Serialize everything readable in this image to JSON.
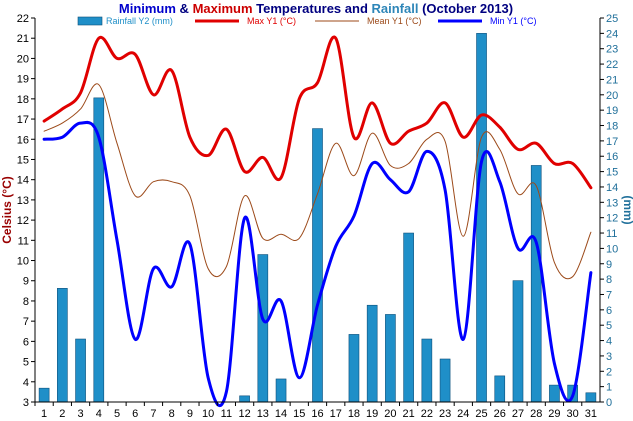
{
  "chart_data": {
    "type": "bar+line",
    "title_parts": [
      {
        "text": "Minimum",
        "color": "#0000cc"
      },
      {
        "text": " & ",
        "color": "#000080"
      },
      {
        "text": "Maximum",
        "color": "#cc0000"
      },
      {
        "text": " Temperatures and ",
        "color": "#000080"
      },
      {
        "text": "Rainfall",
        "color": "#2e86b8"
      },
      {
        "text": " (October 2013)",
        "color": "#000080"
      }
    ],
    "ylabel_left": "Celsius (°C)",
    "ylabel_right": "(mm)",
    "x": [
      1,
      2,
      3,
      4,
      5,
      6,
      7,
      8,
      9,
      10,
      11,
      12,
      13,
      14,
      15,
      16,
      17,
      18,
      19,
      20,
      21,
      22,
      23,
      24,
      25,
      26,
      27,
      28,
      29,
      30,
      31
    ],
    "y1_ticks": [
      3,
      4,
      5,
      6,
      7,
      8,
      9,
      10,
      11,
      12,
      13,
      14,
      15,
      16,
      17,
      18,
      19,
      20,
      21,
      22
    ],
    "y1_range": [
      3,
      22
    ],
    "y2_ticks": [
      0,
      1,
      2,
      3,
      4,
      5,
      6,
      7,
      8,
      9,
      10,
      11,
      12,
      13,
      14,
      15,
      16,
      17,
      18,
      19,
      20,
      21,
      22,
      23,
      24,
      25
    ],
    "y2_range": [
      0,
      25
    ],
    "grid": false,
    "legend_placement": "top",
    "series": [
      {
        "name": "Rainfall Y2 (mm)",
        "kind": "bar",
        "axis": "y2",
        "color": "#1f8fc8",
        "values": [
          0.9,
          7.4,
          4.1,
          19.8,
          0,
          0,
          0,
          0,
          0,
          0,
          0,
          0.4,
          9.6,
          1.5,
          0,
          17.8,
          0,
          4.4,
          6.3,
          5.7,
          11,
          4.1,
          2.8,
          0,
          24,
          1.7,
          7.9,
          15.4,
          1.1,
          1.1,
          0.6
        ]
      },
      {
        "name": "Max Y1 (°C)",
        "kind": "line",
        "axis": "y1",
        "color": "#e00000",
        "width": 3,
        "values": [
          16.9,
          17.5,
          18.3,
          21.0,
          20.0,
          20.2,
          18.2,
          19.4,
          16.1,
          15.2,
          16.5,
          14.4,
          15.1,
          14.1,
          18.0,
          18.8,
          21.0,
          16.1,
          17.8,
          15.8,
          16.4,
          16.8,
          17.8,
          16.1,
          17.2,
          16.6,
          15.5,
          15.8,
          14.8,
          14.8,
          13.6
        ]
      },
      {
        "name": "Mean Y1 (°C)",
        "kind": "line",
        "axis": "y1",
        "color": "#9c4a1a",
        "width": 1,
        "values": [
          16.4,
          16.8,
          17.5,
          18.7,
          15.8,
          13.2,
          13.9,
          13.9,
          13.2,
          9.6,
          9.7,
          13.2,
          11.1,
          11.3,
          11.1,
          13.3,
          15.8,
          14.2,
          16.3,
          14.7,
          14.8,
          16.0,
          15.9,
          11.2,
          16.1,
          15.5,
          13.3,
          13.7,
          9.9,
          9.2,
          11.4
        ]
      },
      {
        "name": "Min Y1 (°C)",
        "kind": "line",
        "axis": "y1",
        "color": "#0000ff",
        "width": 3,
        "values": [
          16.0,
          16.1,
          16.8,
          16.1,
          11.0,
          6.1,
          9.6,
          8.7,
          10.8,
          4.2,
          3.5,
          12.1,
          7.1,
          8.0,
          4.2,
          7.8,
          10.7,
          12.2,
          14.8,
          14.0,
          13.4,
          15.4,
          13.5,
          6.1,
          14.9,
          13.9,
          10.6,
          10.9,
          4.9,
          3.3,
          9.4
        ]
      }
    ]
  }
}
